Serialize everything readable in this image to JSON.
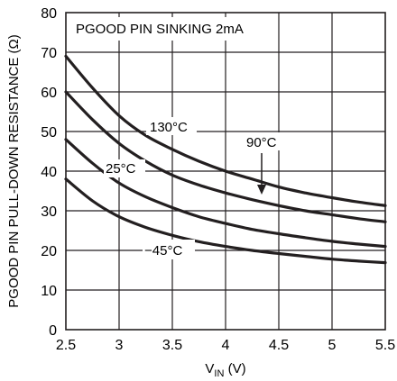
{
  "chart_data": {
    "type": "line",
    "annotation": "PGOOD PIN SINKING 2mA",
    "xlabel": {
      "main": "V",
      "sub": "IN",
      "unit": " (V)"
    },
    "ylabel": "PGOOD PIN PULL-DOWN RESISTANCE (Ω)",
    "xlim": [
      2.5,
      5.5
    ],
    "ylim": [
      0,
      80
    ],
    "x_ticks": [
      "2.5",
      "3",
      "3.5",
      "4",
      "4.5",
      "5",
      "5.5"
    ],
    "y_ticks": [
      "0",
      "10",
      "20",
      "30",
      "40",
      "50",
      "60",
      "70",
      "80"
    ],
    "grid": true,
    "x": [
      2.5,
      2.75,
      3.0,
      3.25,
      3.5,
      3.75,
      4.0,
      4.25,
      4.5,
      4.75,
      5.0,
      5.25,
      5.5
    ],
    "series": [
      {
        "name": "130°C",
        "values": [
          69,
          61,
          54,
          49,
          45.5,
          42.5,
          40,
          38,
          36,
          34.5,
          33.3,
          32.2,
          31.3
        ]
      },
      {
        "name": "90°C",
        "values": [
          60,
          53,
          47,
          42.5,
          39,
          36.5,
          34.5,
          32.8,
          31.3,
          30,
          29,
          28,
          27.2
        ]
      },
      {
        "name": "25°C",
        "values": [
          48,
          42,
          37,
          33.5,
          30.8,
          28.5,
          26.8,
          25.3,
          24.2,
          23.2,
          22.3,
          21.6,
          21
        ]
      },
      {
        "name": "−45°C",
        "values": [
          38,
          32.5,
          28.5,
          25.8,
          23.8,
          22.2,
          21,
          20,
          19.2,
          18.5,
          17.8,
          17.3,
          16.9
        ]
      }
    ],
    "curve_labels": [
      "130°C",
      "90°C",
      "25°C",
      "−45°C"
    ]
  }
}
